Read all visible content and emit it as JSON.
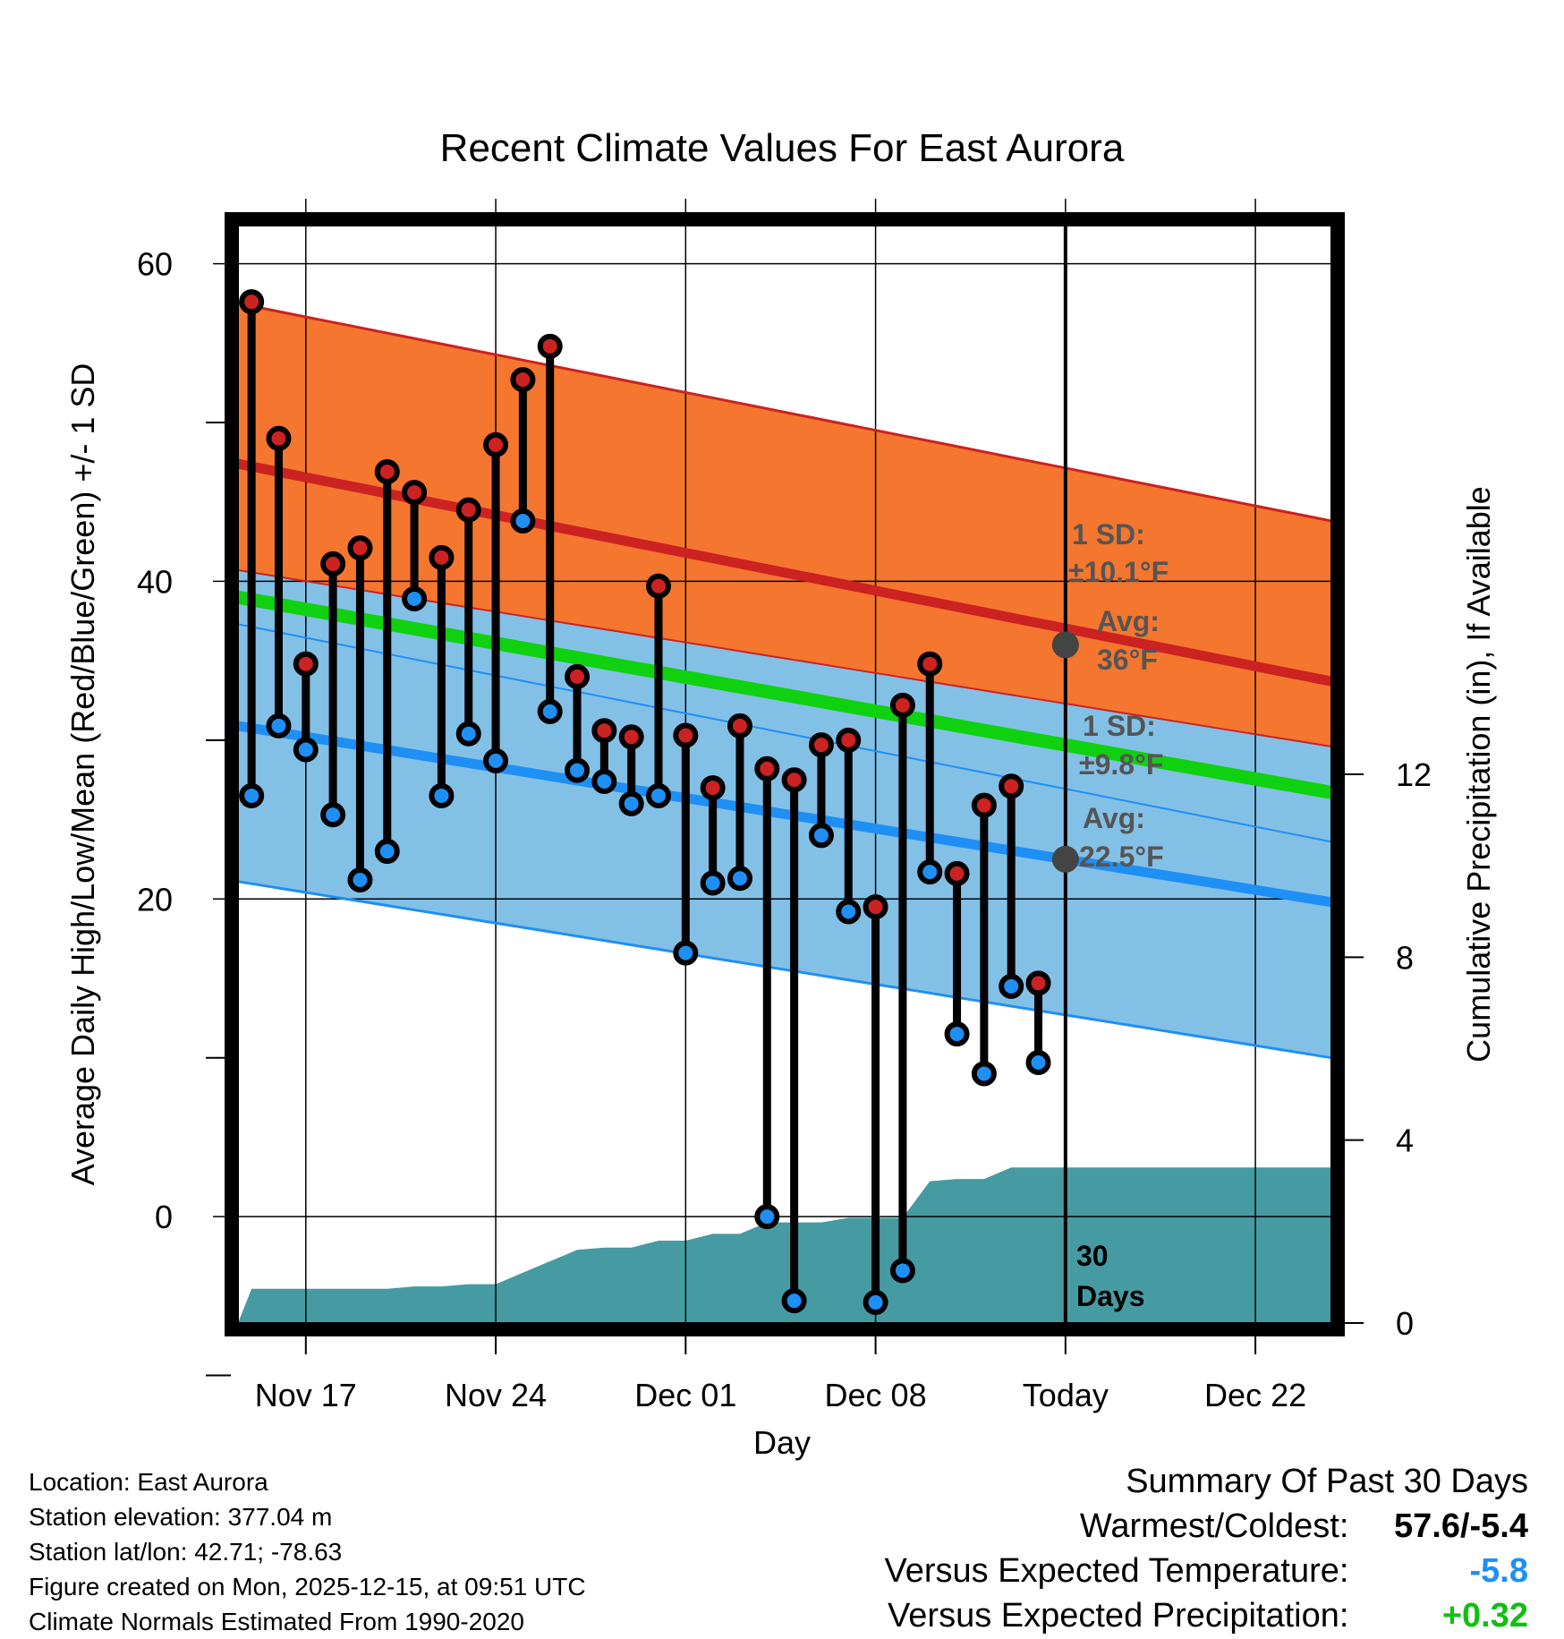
{
  "chart_data": {
    "type": "line",
    "title": "Recent Climate Values For East Aurora",
    "xlabel": "Day",
    "ylabel": "Average Daily High/Low/Mean (Red/Blue/Green) +/- 1 SD",
    "ylabel_right": "Cumulative Precipitation (in), If Available",
    "x_tick_labels": [
      "Nov 17",
      "Nov 24",
      "Dec 01",
      "Dec 08",
      "Today",
      "Dec 22"
    ],
    "x_tick_days": [
      3,
      10,
      17,
      24,
      31,
      38
    ],
    "x_range_days": [
      0.5,
      40.8
    ],
    "today_day": 31,
    "y_left_range": [
      -6.7,
      62.4
    ],
    "y_left_ticks": [
      0,
      20,
      40,
      60
    ],
    "y_left_minor": [
      -10,
      10,
      30,
      50
    ],
    "y_right_range": [
      0,
      24
    ],
    "y_right_ticks": [
      0,
      4,
      8,
      12
    ],
    "normal_high": {
      "start": 47.4,
      "end": 33.7,
      "sd": 10.1,
      "today_value": 36
    },
    "normal_low": {
      "start": 30.9,
      "end": 19.8,
      "sd": 9.8,
      "today_value": 22.5
    },
    "normal_mean": {
      "start": 39.0,
      "end": 26.7
    },
    "observations": [
      {
        "day": 1,
        "high": 57.6,
        "low": 26.5
      },
      {
        "day": 2,
        "high": 49.0,
        "low": 30.9
      },
      {
        "day": 3,
        "high": 34.8,
        "low": 29.4
      },
      {
        "day": 4,
        "high": 41.1,
        "low": 25.3
      },
      {
        "day": 5,
        "high": 42.1,
        "low": 21.2
      },
      {
        "day": 6,
        "high": 46.9,
        "low": 23.0
      },
      {
        "day": 7,
        "high": 45.6,
        "low": 38.9
      },
      {
        "day": 8,
        "high": 41.5,
        "low": 26.5
      },
      {
        "day": 9,
        "high": 44.5,
        "low": 30.4
      },
      {
        "day": 10,
        "high": 48.6,
        "low": 28.7
      },
      {
        "day": 11,
        "high": 52.7,
        "low": 43.8
      },
      {
        "day": 12,
        "high": 54.8,
        "low": 31.8
      },
      {
        "day": 13,
        "high": 34.0,
        "low": 28.1
      },
      {
        "day": 14,
        "high": 30.6,
        "low": 27.4
      },
      {
        "day": 15,
        "high": 30.2,
        "low": 26.0
      },
      {
        "day": 16,
        "high": 39.7,
        "low": 26.5
      },
      {
        "day": 17,
        "high": 30.3,
        "low": 16.6
      },
      {
        "day": 18,
        "high": 27.0,
        "low": 21.0
      },
      {
        "day": 19,
        "high": 30.9,
        "low": 21.3
      },
      {
        "day": 20,
        "high": 28.2,
        "low": 0.0
      },
      {
        "day": 21,
        "high": 27.5,
        "low": -5.3
      },
      {
        "day": 22,
        "high": 29.7,
        "low": 24.0
      },
      {
        "day": 23,
        "high": 30.0,
        "low": 19.2
      },
      {
        "day": 24,
        "high": 19.5,
        "low": -5.4
      },
      {
        "day": 25,
        "high": 32.2,
        "low": -3.4
      },
      {
        "day": 26,
        "high": 34.8,
        "low": 21.7
      },
      {
        "day": 27,
        "high": 21.6,
        "low": 11.5
      },
      {
        "day": 28,
        "high": 25.9,
        "low": 9.0
      },
      {
        "day": 29,
        "high": 27.1,
        "low": 14.5
      },
      {
        "day": 30,
        "high": 14.7,
        "low": 9.7
      }
    ],
    "precip_cumulative": [
      {
        "day": 0.5,
        "value": 0
      },
      {
        "day": 1,
        "value": 0.75
      },
      {
        "day": 4,
        "value": 0.75
      },
      {
        "day": 6,
        "value": 0.75
      },
      {
        "day": 7,
        "value": 0.8
      },
      {
        "day": 8,
        "value": 0.8
      },
      {
        "day": 9,
        "value": 0.85
      },
      {
        "day": 10,
        "value": 0.85
      },
      {
        "day": 11,
        "value": 1.1
      },
      {
        "day": 12,
        "value": 1.35
      },
      {
        "day": 13,
        "value": 1.6
      },
      {
        "day": 14,
        "value": 1.65
      },
      {
        "day": 15,
        "value": 1.65
      },
      {
        "day": 16,
        "value": 1.8
      },
      {
        "day": 17,
        "value": 1.8
      },
      {
        "day": 18,
        "value": 1.95
      },
      {
        "day": 19,
        "value": 1.95
      },
      {
        "day": 20,
        "value": 2.2
      },
      {
        "day": 21,
        "value": 2.2
      },
      {
        "day": 22,
        "value": 2.2
      },
      {
        "day": 23,
        "value": 2.3
      },
      {
        "day": 24,
        "value": 2.3
      },
      {
        "day": 25,
        "value": 2.3
      },
      {
        "day": 26,
        "value": 3.1
      },
      {
        "day": 27,
        "value": 3.15
      },
      {
        "day": 28,
        "value": 3.15
      },
      {
        "day": 29,
        "value": 3.4
      },
      {
        "day": 30,
        "value": 3.4
      },
      {
        "day": 31,
        "value": 3.4
      },
      {
        "day": 40.8,
        "value": 3.4
      }
    ],
    "annotations": {
      "high_sd_label": "1 SD:",
      "high_sd_value": "±10.1°F",
      "high_avg_label": "Avg:",
      "high_avg_value": "36°F",
      "low_sd_label": "1 SD:",
      "low_sd_value": "±9.8°F",
      "low_avg_label": "Avg:",
      "low_avg_value": "22.5°F",
      "days_count": "30",
      "days_word": "Days"
    },
    "colors": {
      "high_band": "#f5762e",
      "high_line": "#cc2222",
      "mid_band": "#981012",
      "low_band": "#83c0e6",
      "low_line": "#1e8ff5",
      "mean_line": "#0fd10f",
      "precip": "#469ba2",
      "high_dot": "#cc2222",
      "low_dot": "#1e8ff5",
      "avg_dot": "#444444"
    }
  },
  "footer": {
    "location": "Location: East Aurora",
    "elevation": "Station elevation: 377.04 m",
    "latlon": "Station lat/lon: 42.71; -78.63",
    "created": "Figure created on Mon, 2025-12-15, at 09:51 UTC",
    "normals": "Climate Normals Estimated From 1990-2020"
  },
  "summary": {
    "heading": "Summary Of Past 30 Days",
    "warm_cold_label": "Warmest/Coldest:",
    "warm_cold_value": "57.6/-5.4",
    "temp_label": "Versus Expected Temperature:",
    "temp_value": "-5.8",
    "temp_color": "#1e8ff5",
    "precip_label": "Versus Expected Precipitation:",
    "precip_value": "+0.32",
    "precip_color": "#10c010"
  }
}
